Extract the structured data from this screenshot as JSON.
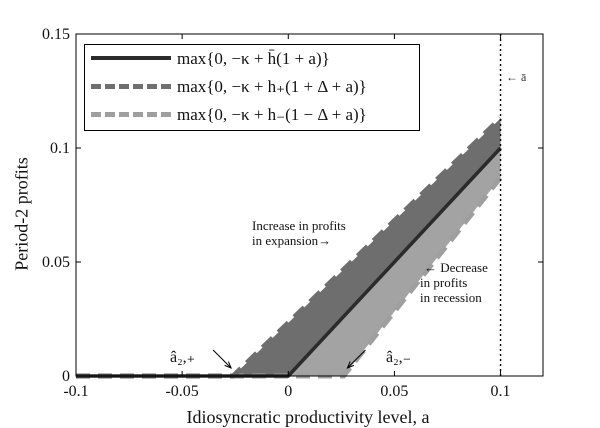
{
  "chart_data": {
    "type": "line",
    "title": "",
    "xlabel": "Idiosyncratic productivity level, a",
    "ylabel": "Period-2 profits",
    "xlim": [
      -0.1,
      0.12
    ],
    "ylim": [
      0,
      0.15
    ],
    "xticks": [
      -0.1,
      -0.05,
      0,
      0.05,
      0.1
    ],
    "xtick_labels": [
      "-0.1",
      "-0.05",
      "0",
      "0.05",
      "0.1"
    ],
    "yticks": [
      0,
      0.05,
      0.1,
      0.15
    ],
    "ytick_labels": [
      "0",
      "0.05",
      "0.1",
      "0.15"
    ],
    "grid": false,
    "legend_position": "top-left",
    "series": [
      {
        "name": "max{0, −κ + h̄(1 + a)}",
        "style": "solid",
        "color": "#2b2b2b",
        "x": [
          -0.1,
          0.0,
          0.1
        ],
        "y": [
          0,
          0,
          0.1
        ]
      },
      {
        "name": "max{0, −κ + h₊(1 + Δ + a)}",
        "style": "dashed",
        "color": "#6e6e6e",
        "x": [
          -0.1,
          -0.026,
          0.1
        ],
        "y": [
          0,
          0,
          0.113
        ]
      },
      {
        "name": "max{0, −κ + h₋(1 − Δ + a)}",
        "style": "dashed",
        "color": "#9f9f9f",
        "x": [
          -0.1,
          0.026,
          0.1
        ],
        "y": [
          0,
          0,
          0.087
        ]
      }
    ],
    "shaded_regions": [
      {
        "label": "Increase in profits in expansion",
        "color": "#6e6e6e"
      },
      {
        "label": "Decrease in profits in recession",
        "color": "#a3a3a3"
      }
    ],
    "vline": {
      "x": 0.1,
      "label": "← ā",
      "style": "dotted"
    },
    "annotations": {
      "a_plus": "â₂,₊",
      "a_minus": "â₂,₋",
      "expansion_line1": "Increase in profits",
      "expansion_line2": "in expansion→",
      "recession_line1": "← Decrease",
      "recession_line2": "in profits",
      "recession_line3": "in recession",
      "abar": "← ā"
    }
  }
}
